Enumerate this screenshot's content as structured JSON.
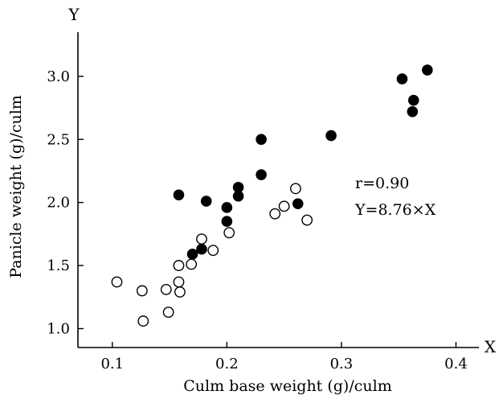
{
  "chart_data": {
    "type": "scatter",
    "xlabel": "Culm base weight (g)/culm",
    "ylabel": "Panicle weight (g)/culm",
    "x_axis_letter": "X",
    "y_axis_letter": "Y",
    "xlim": [
      0.07,
      0.42
    ],
    "ylim": [
      0.85,
      3.35
    ],
    "xticks": [
      {
        "value": 0.1,
        "label": "0.1"
      },
      {
        "value": 0.2,
        "label": "0.2"
      },
      {
        "value": 0.3,
        "label": "0.3"
      },
      {
        "value": 0.4,
        "label": "0.4"
      }
    ],
    "yticks": [
      {
        "value": 1.0,
        "label": "1.0"
      },
      {
        "value": 1.5,
        "label": "1.5"
      },
      {
        "value": 2.0,
        "label": "2.0"
      },
      {
        "value": 2.5,
        "label": "2.5"
      },
      {
        "value": 3.0,
        "label": "3.0"
      }
    ],
    "grid": false,
    "annotations": {
      "r": "r=0.90",
      "equation": "Y=8.76×X"
    },
    "series": [
      {
        "marker": "filled-circle",
        "points": [
          {
            "x": 0.158,
            "y": 2.06
          },
          {
            "x": 0.182,
            "y": 2.01
          },
          {
            "x": 0.2,
            "y": 1.96
          },
          {
            "x": 0.21,
            "y": 2.12
          },
          {
            "x": 0.21,
            "y": 2.05
          },
          {
            "x": 0.23,
            "y": 2.5
          },
          {
            "x": 0.23,
            "y": 2.22
          },
          {
            "x": 0.2,
            "y": 1.85
          },
          {
            "x": 0.17,
            "y": 1.59
          },
          {
            "x": 0.178,
            "y": 1.63
          },
          {
            "x": 0.262,
            "y": 1.99
          },
          {
            "x": 0.291,
            "y": 2.53
          },
          {
            "x": 0.353,
            "y": 2.98
          },
          {
            "x": 0.375,
            "y": 3.05
          },
          {
            "x": 0.363,
            "y": 2.81
          },
          {
            "x": 0.362,
            "y": 2.72
          }
        ]
      },
      {
        "marker": "open-circle",
        "points": [
          {
            "x": 0.104,
            "y": 1.37
          },
          {
            "x": 0.126,
            "y": 1.3
          },
          {
            "x": 0.127,
            "y": 1.06
          },
          {
            "x": 0.147,
            "y": 1.31
          },
          {
            "x": 0.149,
            "y": 1.13
          },
          {
            "x": 0.158,
            "y": 1.5
          },
          {
            "x": 0.158,
            "y": 1.37
          },
          {
            "x": 0.159,
            "y": 1.29
          },
          {
            "x": 0.169,
            "y": 1.51
          },
          {
            "x": 0.178,
            "y": 1.71
          },
          {
            "x": 0.188,
            "y": 1.62
          },
          {
            "x": 0.202,
            "y": 1.76
          },
          {
            "x": 0.242,
            "y": 1.91
          },
          {
            "x": 0.25,
            "y": 1.97
          },
          {
            "x": 0.26,
            "y": 2.11
          },
          {
            "x": 0.27,
            "y": 1.86
          }
        ]
      }
    ]
  }
}
